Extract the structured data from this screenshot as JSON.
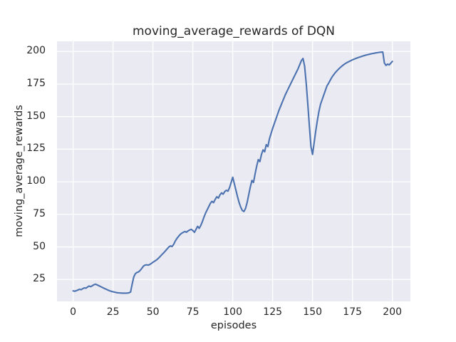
{
  "figure": {
    "title": "moving_average_rewards of DQN",
    "xlabel": "episodes",
    "ylabel": "moving_average_rewards"
  },
  "chart_data": {
    "type": "line",
    "title": "moving_average_rewards of DQN",
    "xlabel": "episodes",
    "ylabel": "moving_average_rewards",
    "legend": "none",
    "grid": true,
    "style": "seaborn-darkgrid",
    "xlim": [
      -10.1,
      211.3
    ],
    "ylim": [
      8.2,
      207.8
    ],
    "xticks": [
      0,
      25,
      50,
      75,
      100,
      125,
      150,
      175,
      200
    ],
    "yticks": [
      25,
      50,
      75,
      100,
      125,
      150,
      175,
      200
    ],
    "colors": {
      "line": "#4C72B0",
      "plot_background": "#EAEAF2",
      "grid": "#FFFFFF",
      "text": "#262626",
      "figure_background": "#FFFFFF"
    },
    "series": [
      {
        "name": "moving_average_rewards",
        "x_start": 0,
        "x_step": 1,
        "values": [
          16.3,
          16.0,
          16.4,
          16.9,
          17.5,
          17.2,
          17.9,
          18.6,
          18.3,
          19.2,
          20.0,
          19.5,
          20.2,
          21.0,
          21.4,
          20.9,
          20.3,
          19.7,
          19.1,
          18.5,
          17.9,
          17.4,
          16.8,
          16.3,
          15.9,
          15.6,
          15.3,
          15.0,
          14.8,
          14.7,
          14.6,
          14.5,
          14.5,
          14.5,
          14.6,
          14.8,
          15.4,
          21.5,
          27.0,
          29.5,
          30.4,
          30.8,
          32.0,
          33.5,
          35.2,
          36.0,
          36.3,
          36.0,
          36.5,
          37.3,
          38.2,
          39.0,
          39.8,
          40.8,
          42.0,
          43.3,
          44.6,
          45.8,
          47.2,
          48.6,
          50.0,
          50.8,
          50.3,
          52.0,
          54.5,
          56.5,
          58.0,
          59.5,
          60.5,
          61.2,
          61.8,
          61.3,
          62.3,
          63.0,
          63.5,
          62.6,
          61.2,
          63.5,
          65.8,
          64.3,
          66.5,
          69.5,
          73.0,
          76.0,
          78.5,
          81.0,
          83.5,
          85.0,
          84.0,
          86.5,
          88.5,
          87.5,
          90.0,
          91.5,
          90.5,
          92.5,
          93.5,
          92.8,
          95.5,
          99.5,
          103.5,
          98.5,
          93.5,
          88.5,
          84.0,
          80.5,
          78.0,
          77.2,
          79.5,
          84.0,
          90.0,
          96.0,
          101.0,
          99.5,
          106.0,
          112.0,
          117.0,
          115.5,
          121.0,
          124.5,
          123.0,
          128.5,
          127.0,
          133.0,
          137.0,
          141.0,
          144.5,
          148.0,
          151.5,
          155.0,
          158.0,
          161.0,
          164.0,
          167.0,
          169.5,
          172.0,
          174.5,
          177.0,
          179.5,
          182.0,
          184.5,
          187.0,
          190.0,
          193.0,
          194.7,
          189.0,
          176.0,
          160.0,
          143.0,
          127.0,
          121.0,
          130.0,
          139.0,
          147.0,
          154.0,
          159.5,
          163.0,
          166.5,
          170.0,
          173.5,
          175.5,
          177.8,
          180.0,
          181.8,
          183.4,
          184.8,
          186.1,
          187.3,
          188.4,
          189.4,
          190.3,
          191.1,
          191.8,
          192.4,
          193.0,
          193.6,
          194.1,
          194.6,
          195.1,
          195.5,
          195.9,
          196.3,
          196.7,
          197.1,
          197.4,
          197.7,
          198.0,
          198.3,
          198.5,
          198.8,
          199.0,
          199.2,
          199.4,
          199.5,
          199.6,
          191.2,
          189.3,
          190.3,
          189.7,
          191.0,
          192.4
        ]
      }
    ]
  }
}
